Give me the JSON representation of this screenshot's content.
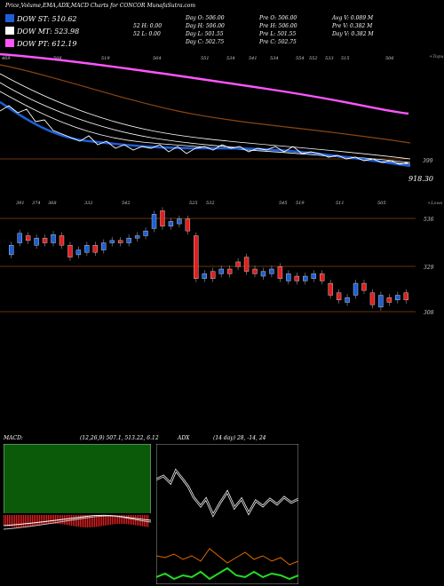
{
  "header": {
    "title": "Price,Volume,EMA,ADX,MACD Charts for CONCOR MunafaSutra.com"
  },
  "legend": [
    {
      "label": "DOW ST: 510.62",
      "color": "#1e5fd6"
    },
    {
      "label": "DOW MT: 523.98",
      "color": "#ffffff"
    },
    {
      "label": "DOW PT: 612.19",
      "color": "#ff55ff"
    }
  ],
  "stats": [
    [
      "Day O: 506.00",
      "Pre O: 506.00",
      "Avg V: 0.089 M"
    ],
    [
      "52 H: 0.00",
      "Day H: 506.00",
      "Pre H: 506.00",
      "Pre V: 0.382 M"
    ],
    [
      "52 L: 0.00",
      "Day L: 501.55",
      "Pre L: 501.55",
      "Day V: 0.382 M"
    ],
    [
      "Day C: 502.75",
      "Pre C: 502.75"
    ]
  ],
  "main_panel": {
    "right_label": "+Topu",
    "big_value": "918.30",
    "level_label": "399",
    "top_labels": [
      "469",
      "508",
      "519",
      "564",
      "551",
      "534",
      "541",
      "534",
      "554",
      "552",
      "533",
      "515",
      "506"
    ]
  },
  "price_panel": {
    "right_label": "+Lows",
    "level_labels": [
      "536",
      "329",
      "308"
    ],
    "top_labels": [
      "391",
      "374",
      "368",
      "332",
      "542",
      "525",
      "532",
      "545",
      "519",
      "511",
      "505"
    ]
  },
  "macd_panel": {
    "label": "MACD:",
    "values": "(12,26,9) 507.1, 513.22, 6.12"
  },
  "adx_panel": {
    "label": "ADX",
    "values": "(14 day) 28, -14, 24"
  },
  "colors": {
    "bg": "#000000",
    "up": "#1e5fd6",
    "down": "#e02020",
    "ema_pt": "#ff55ff",
    "ema_mt": "#ffffff",
    "brown": "#8b4513",
    "macd_bg": "#0a5a0a",
    "adx_plus": "#22dd22",
    "adx_minus": "#e06a00"
  },
  "chart_data": {
    "type": "candlestick",
    "title": "Price,Volume,EMA,ADX,MACD Charts for CONCOR MunafaSutra.com",
    "dow_st": 510.62,
    "dow_mt": 523.98,
    "dow_pt": 612.19,
    "last": {
      "open": 506.0,
      "high": 506.0,
      "low": 501.55,
      "close": 502.75,
      "volume_m": 0.382
    },
    "candles": [
      {
        "o": 0.62,
        "c": 0.7
      },
      {
        "o": 0.72,
        "c": 0.8
      },
      {
        "o": 0.78,
        "c": 0.74
      },
      {
        "o": 0.7,
        "c": 0.76
      },
      {
        "o": 0.76,
        "c": 0.72
      },
      {
        "o": 0.72,
        "c": 0.79
      },
      {
        "o": 0.78,
        "c": 0.7
      },
      {
        "o": 0.7,
        "c": 0.6
      },
      {
        "o": 0.62,
        "c": 0.66
      },
      {
        "o": 0.64,
        "c": 0.7
      },
      {
        "o": 0.7,
        "c": 0.64
      },
      {
        "o": 0.66,
        "c": 0.72
      },
      {
        "o": 0.72,
        "c": 0.74
      },
      {
        "o": 0.74,
        "c": 0.72
      },
      {
        "o": 0.72,
        "c": 0.76
      },
      {
        "o": 0.76,
        "c": 0.78
      },
      {
        "o": 0.78,
        "c": 0.82
      },
      {
        "o": 0.84,
        "c": 0.96
      },
      {
        "o": 0.99,
        "c": 0.86
      },
      {
        "o": 0.86,
        "c": 0.9
      },
      {
        "o": 0.88,
        "c": 0.92
      },
      {
        "o": 0.92,
        "c": 0.82
      },
      {
        "o": 0.78,
        "c": 0.42
      },
      {
        "o": 0.42,
        "c": 0.46
      },
      {
        "o": 0.48,
        "c": 0.42
      },
      {
        "o": 0.46,
        "c": 0.5
      },
      {
        "o": 0.5,
        "c": 0.46
      },
      {
        "o": 0.56,
        "c": 0.52
      },
      {
        "o": 0.6,
        "c": 0.48
      },
      {
        "o": 0.5,
        "c": 0.46
      },
      {
        "o": 0.44,
        "c": 0.48
      },
      {
        "o": 0.46,
        "c": 0.5
      },
      {
        "o": 0.52,
        "c": 0.42
      },
      {
        "o": 0.4,
        "c": 0.46
      },
      {
        "o": 0.44,
        "c": 0.4
      },
      {
        "o": 0.4,
        "c": 0.44
      },
      {
        "o": 0.42,
        "c": 0.46
      },
      {
        "o": 0.46,
        "c": 0.4
      },
      {
        "o": 0.38,
        "c": 0.28
      },
      {
        "o": 0.3,
        "c": 0.24
      },
      {
        "o": 0.22,
        "c": 0.26
      },
      {
        "o": 0.28,
        "c": 0.38
      },
      {
        "o": 0.38,
        "c": 0.32
      },
      {
        "o": 0.3,
        "c": 0.2
      },
      {
        "o": 0.18,
        "c": 0.28
      },
      {
        "o": 0.26,
        "c": 0.22
      },
      {
        "o": 0.24,
        "c": 0.28
      },
      {
        "o": 0.3,
        "c": 0.24
      }
    ]
  }
}
